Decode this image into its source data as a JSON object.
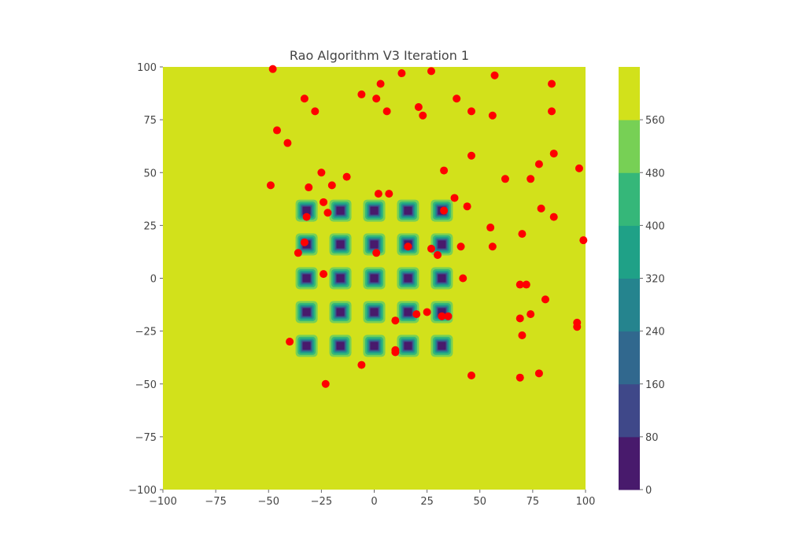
{
  "chart_data": {
    "type": "scatter",
    "title": "Rao Algorithm V3 Iteration 1",
    "xlim": [
      -100,
      100
    ],
    "ylim": [
      -100,
      100
    ],
    "x_ticks": [
      "−100",
      "−75",
      "−50",
      "−25",
      "0",
      "25",
      "50",
      "75",
      "100"
    ],
    "y_ticks": [
      "−100",
      "−75",
      "−50",
      "−25",
      "0",
      "25",
      "50",
      "75",
      "100"
    ],
    "x_tick_values": [
      -100,
      -75,
      -50,
      -25,
      0,
      25,
      50,
      75,
      100
    ],
    "y_tick_values": [
      -100,
      -75,
      -50,
      -25,
      0,
      25,
      50,
      75,
      100
    ],
    "grid": false,
    "background_contour": {
      "type": "contourf",
      "well_centers": [
        -32,
        -16,
        0,
        16,
        32
      ],
      "levels": [
        0,
        80,
        160,
        240,
        320,
        400,
        480,
        560
      ],
      "level_labels": [
        "0",
        "80",
        "160",
        "240",
        "320",
        "400",
        "480",
        "560"
      ],
      "colors": [
        "#481a6c",
        "#3f4889",
        "#31688e",
        "#25848e",
        "#1fa187",
        "#35b779",
        "#77d055",
        "#d2e11b"
      ]
    },
    "points_color": "#ff0000",
    "points": [
      {
        "x": -48,
        "y": 99
      },
      {
        "x": 13,
        "y": 97
      },
      {
        "x": 27,
        "y": 98
      },
      {
        "x": 57,
        "y": 96
      },
      {
        "x": 3,
        "y": 92
      },
      {
        "x": 84,
        "y": 92
      },
      {
        "x": -6,
        "y": 87
      },
      {
        "x": 1,
        "y": 85
      },
      {
        "x": -33,
        "y": 85
      },
      {
        "x": 39,
        "y": 85
      },
      {
        "x": 21,
        "y": 81
      },
      {
        "x": -28,
        "y": 79
      },
      {
        "x": 6,
        "y": 79
      },
      {
        "x": 46,
        "y": 79
      },
      {
        "x": 84,
        "y": 79
      },
      {
        "x": 23,
        "y": 77
      },
      {
        "x": 56,
        "y": 77
      },
      {
        "x": -46,
        "y": 70
      },
      {
        "x": -41,
        "y": 64
      },
      {
        "x": 85,
        "y": 59
      },
      {
        "x": 46,
        "y": 58
      },
      {
        "x": 78,
        "y": 54
      },
      {
        "x": 97,
        "y": 52
      },
      {
        "x": -25,
        "y": 50
      },
      {
        "x": 33,
        "y": 51
      },
      {
        "x": -13,
        "y": 48
      },
      {
        "x": 62,
        "y": 47
      },
      {
        "x": 74,
        "y": 47
      },
      {
        "x": -49,
        "y": 44
      },
      {
        "x": -20,
        "y": 44
      },
      {
        "x": -31,
        "y": 43
      },
      {
        "x": 2,
        "y": 40
      },
      {
        "x": 7,
        "y": 40
      },
      {
        "x": 38,
        "y": 38
      },
      {
        "x": -24,
        "y": 36
      },
      {
        "x": 44,
        "y": 34
      },
      {
        "x": 79,
        "y": 33
      },
      {
        "x": 33,
        "y": 32
      },
      {
        "x": -22,
        "y": 31
      },
      {
        "x": -32,
        "y": 29
      },
      {
        "x": 85,
        "y": 29
      },
      {
        "x": 55,
        "y": 24
      },
      {
        "x": 70,
        "y": 21
      },
      {
        "x": 99,
        "y": 18
      },
      {
        "x": -33,
        "y": 17
      },
      {
        "x": 16,
        "y": 15
      },
      {
        "x": 41,
        "y": 15
      },
      {
        "x": 56,
        "y": 15
      },
      {
        "x": 27,
        "y": 14
      },
      {
        "x": -36,
        "y": 12
      },
      {
        "x": 1,
        "y": 12
      },
      {
        "x": 30,
        "y": 11
      },
      {
        "x": -24,
        "y": 2
      },
      {
        "x": 42,
        "y": 0
      },
      {
        "x": 69,
        "y": -3
      },
      {
        "x": 72,
        "y": -3
      },
      {
        "x": 81,
        "y": -10
      },
      {
        "x": 74,
        "y": -17
      },
      {
        "x": 20,
        "y": -17
      },
      {
        "x": 25,
        "y": -16
      },
      {
        "x": 32,
        "y": -18
      },
      {
        "x": 35,
        "y": -18
      },
      {
        "x": 69,
        "y": -19
      },
      {
        "x": 10,
        "y": -20
      },
      {
        "x": 96,
        "y": -21
      },
      {
        "x": 96,
        "y": -23
      },
      {
        "x": 70,
        "y": -27
      },
      {
        "x": -40,
        "y": -30
      },
      {
        "x": 10,
        "y": -34
      },
      {
        "x": 10,
        "y": -35
      },
      {
        "x": -6,
        "y": -41
      },
      {
        "x": 78,
        "y": -45
      },
      {
        "x": 46,
        "y": -46
      },
      {
        "x": 69,
        "y": -47
      },
      {
        "x": -23,
        "y": -50
      }
    ]
  }
}
